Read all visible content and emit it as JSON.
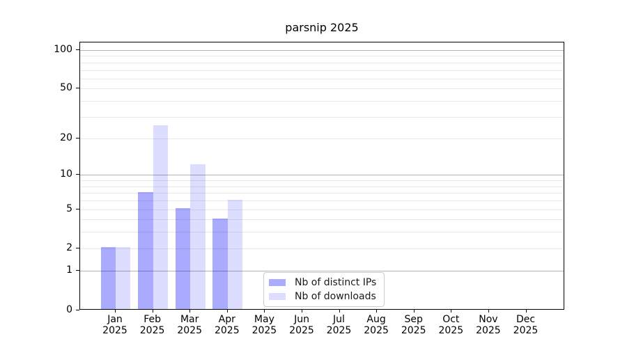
{
  "chart_data": {
    "type": "bar",
    "title": "parsnip 2025",
    "categories": [
      "Jan",
      "Feb",
      "Mar",
      "Apr",
      "May",
      "Jun",
      "Jul",
      "Aug",
      "Sep",
      "Oct",
      "Nov",
      "Dec"
    ],
    "x_tick_year": "2025",
    "series": [
      {
        "name": "Nb of distinct IPs",
        "color": "#aaaaff",
        "values": [
          2,
          7,
          5,
          4,
          0,
          0,
          0,
          0,
          0,
          0,
          0,
          0
        ]
      },
      {
        "name": "Nb of downloads",
        "color": "#ddddff",
        "values": [
          2,
          25,
          12,
          6,
          0,
          0,
          0,
          0,
          0,
          0,
          0,
          0
        ]
      }
    ],
    "y_axis": {
      "scale": "log1p",
      "range": [
        0,
        114.6
      ],
      "tick_labels": [
        "0",
        "1",
        "2",
        "5",
        "10",
        "20",
        "50",
        "100"
      ],
      "tick_values": [
        0,
        1,
        2,
        5,
        10,
        20,
        50,
        100
      ],
      "major_gridlines": [
        1,
        10,
        100
      ],
      "minor_gridlines": [
        2,
        3,
        4,
        5,
        6,
        7,
        8,
        9,
        20,
        30,
        40,
        50,
        60,
        70,
        80,
        90
      ]
    },
    "legend": {
      "position": "lower center",
      "items": [
        "Nb of distinct IPs",
        "Nb of downloads"
      ]
    },
    "grid": true,
    "colors": {
      "major_grid": "#b0b0b0",
      "minor_grid": "#e8e8e8",
      "axis": "#000000",
      "text": "#000000"
    }
  }
}
